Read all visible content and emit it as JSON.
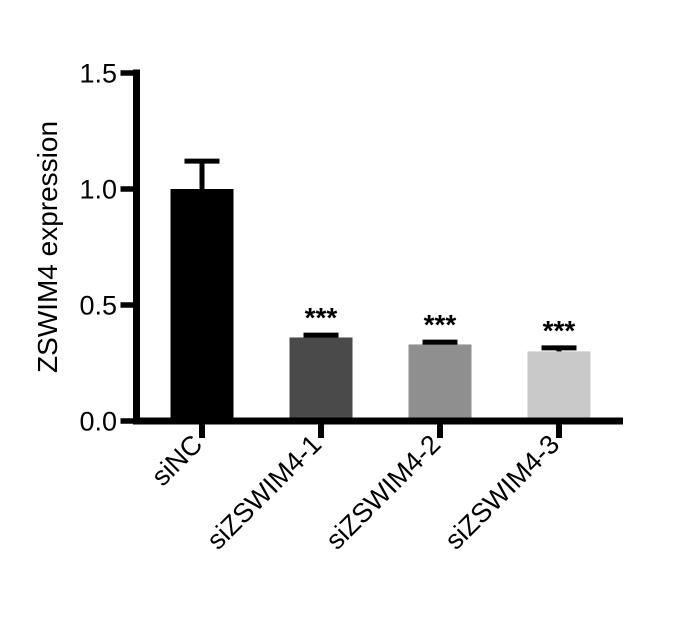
{
  "chart_data": {
    "type": "bar",
    "title": "",
    "xlabel": "",
    "ylabel": "ZSWIM4 expression",
    "categories": [
      "siNC",
      "siZSWIM4-1",
      "siZSWIM4-2",
      "siZSWIM4-3"
    ],
    "values": [
      1.0,
      0.36,
      0.33,
      0.3
    ],
    "errors": [
      0.12,
      0.01,
      0.01,
      0.015
    ],
    "significance": [
      "",
      "***",
      "***",
      "***"
    ],
    "bar_colors": [
      "#000000",
      "#4a4a4a",
      "#8f8f8f",
      "#c9c9c9"
    ],
    "axis_color": "#000000",
    "ylim": [
      0,
      1.5
    ],
    "yticks": [
      0,
      0.5,
      1.0,
      1.5
    ],
    "ytick_labels": [
      "0.0",
      "0.5",
      "1.0",
      "1.5"
    ],
    "grid": false,
    "legend": null,
    "xtick_label_rotation_deg": -45
  }
}
